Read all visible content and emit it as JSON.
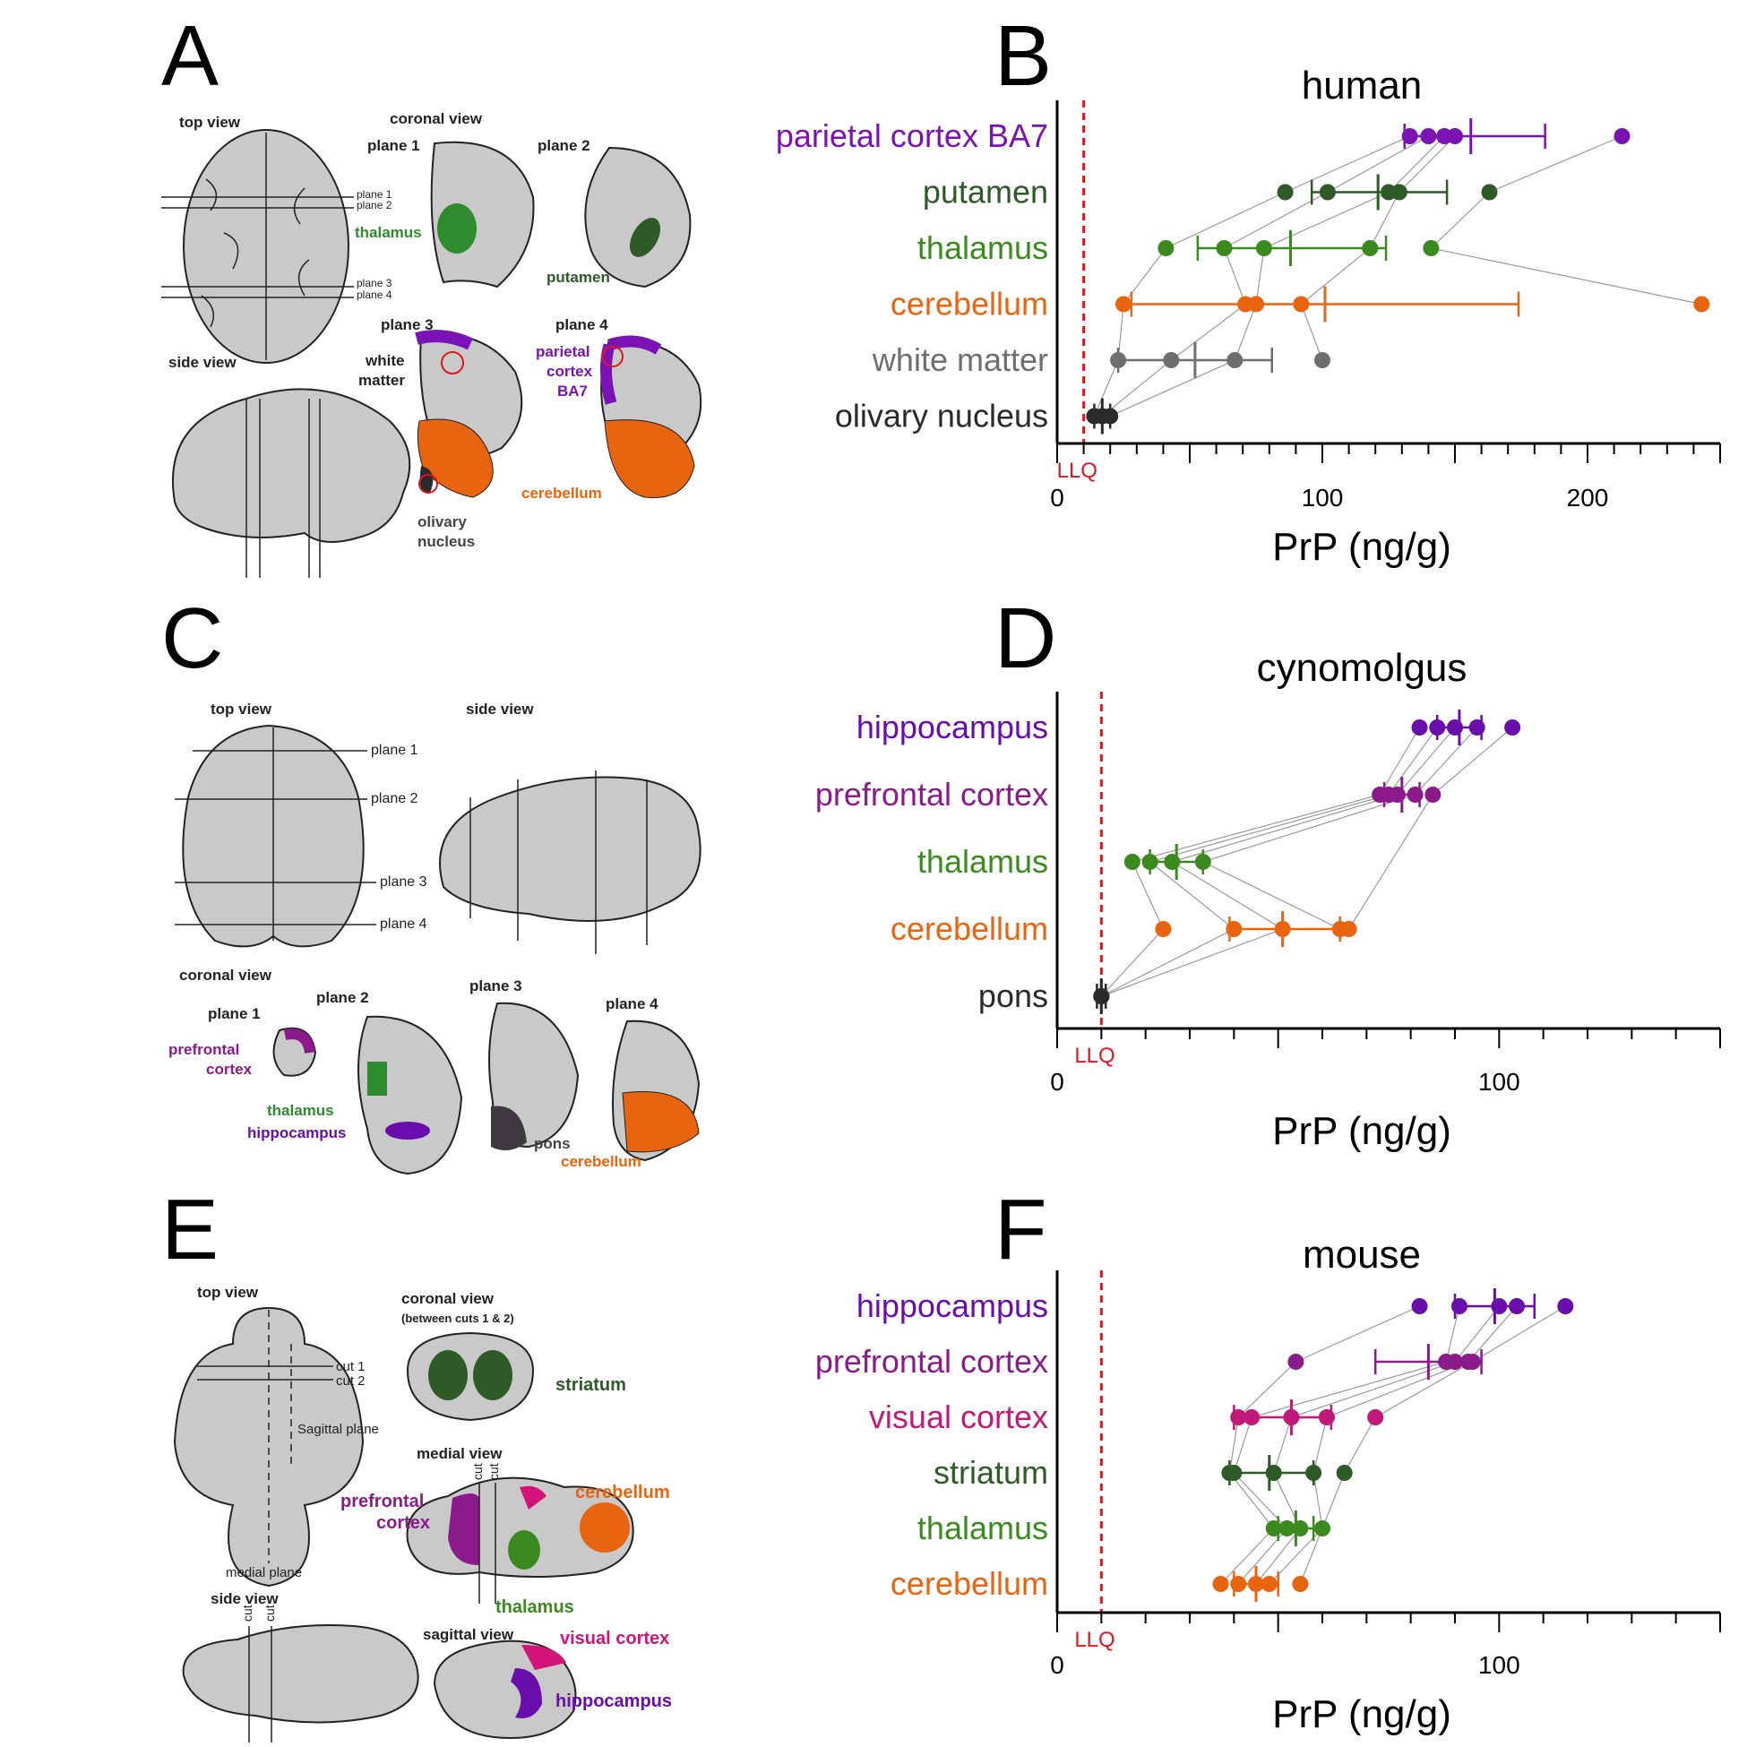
{
  "panels": {
    "A": {
      "letter": "A",
      "top_view": "top view",
      "side_view": "side view",
      "coronal_view": "coronal view",
      "plane_1": "plane 1",
      "plane_2": "plane 2",
      "plane_3": "plane 3",
      "plane_4": "plane 4",
      "thalamus": "thalamus",
      "putamen": "putamen",
      "white": "white",
      "matter": "matter",
      "parietal": "parietal",
      "cortex": "cortex",
      "ba7": "BA7",
      "cerebellum": "cerebellum",
      "olivary": "olivary",
      "nucleus": "nucleus"
    },
    "B": {
      "letter": "B"
    },
    "C": {
      "letter": "C",
      "top_view": "top view",
      "side_view": "side view",
      "coronal_view": "coronal view",
      "plane_1": "plane 1",
      "plane_2": "plane 2",
      "plane_3": "plane 3",
      "plane_4": "plane 4",
      "prefrontal": "prefrontal",
      "cortex": "cortex",
      "thalamus": "thalamus",
      "hippocampus": "hippocampus",
      "pons": "pons",
      "cerebellum": "cerebellum"
    },
    "D": {
      "letter": "D"
    },
    "E": {
      "letter": "E",
      "top_view": "top view",
      "coronal_view": "coronal view",
      "coronal_sub": "(between cuts 1 & 2)",
      "striatum": "striatum",
      "cut_1": "cut 1",
      "cut_2": "cut 2",
      "sagittal_plane": "Sagittal plane",
      "medial_plane": "medial plane",
      "medial_view": "medial view",
      "prefrontal": "prefrontal",
      "cortex": "cortex",
      "cerebellum": "cerebellum",
      "thalamus": "thalamus",
      "side_view": "side view",
      "sagittal_view": "sagittal view",
      "visual_cortex": "visual cortex",
      "hippocampus": "hippocampus",
      "cut": "cut"
    },
    "F": {
      "letter": "F"
    }
  },
  "colors": {
    "purple": "#6a0dad",
    "magenta": "#8b1a8b",
    "pink": "#c2187a",
    "dark_green": "#2d5a27",
    "green": "#3a8a1f",
    "orange": "#e8640e",
    "gray": "#6e6e6e",
    "black": "#2a2a2a",
    "llq_red": "#e0161c"
  },
  "chart_data": [
    {
      "type": "scatter",
      "title": "human",
      "xlabel": "PrP (ng/g)",
      "xlim": [
        0,
        250
      ],
      "xticks": [
        0,
        100,
        200
      ],
      "llq": 10,
      "llq_label": "LLQ",
      "categories": [
        {
          "name": "parietal cortex BA7",
          "color": "#7b12b5",
          "points": [
            133,
            140,
            146,
            150,
            213
          ],
          "mean": 156,
          "sd_low": 131,
          "sd_high": 184
        },
        {
          "name": "putamen",
          "color": "#2d5a27",
          "points": [
            86,
            102,
            125,
            129,
            163
          ],
          "mean": 121,
          "sd_low": 96,
          "sd_high": 147
        },
        {
          "name": "thalamus",
          "color": "#3a8a1f",
          "points": [
            41,
            63,
            78,
            118,
            141
          ],
          "mean": 88,
          "sd_low": 53,
          "sd_high": 124
        },
        {
          "name": "cerebellum",
          "color": "#e8640e",
          "points": [
            25,
            71,
            75,
            92,
            243
          ],
          "mean": 101,
          "sd_low": 28,
          "sd_high": 174
        },
        {
          "name": "white matter",
          "color": "#6e6e6e",
          "points": [
            23,
            43,
            67,
            100
          ],
          "mean": 52,
          "sd_low": 23,
          "sd_high": 81
        },
        {
          "name": "olivary nucleus",
          "color": "#2a2a2a",
          "points": [
            14,
            17,
            20
          ],
          "mean": 17,
          "sd_low": 14,
          "sd_high": 20
        }
      ]
    },
    {
      "type": "scatter",
      "title": "cynomolgus",
      "xlabel": "PrP (ng/g)",
      "xlim": [
        0,
        150
      ],
      "xticks": [
        0,
        100
      ],
      "llq": 10,
      "llq_label": "LLQ",
      "categories": [
        {
          "name": "hippocampus",
          "color": "#6a0dad",
          "points": [
            82,
            86,
            90,
            95,
            103
          ],
          "mean": 91,
          "sd_low": 86,
          "sd_high": 96
        },
        {
          "name": "prefrontal cortex",
          "color": "#8b1a8b",
          "points": [
            73,
            75,
            77,
            81,
            85
          ],
          "mean": 78,
          "sd_low": 74,
          "sd_high": 82
        },
        {
          "name": "thalamus",
          "color": "#3a8a1f",
          "points": [
            17,
            21,
            26,
            33
          ],
          "mean": 27,
          "sd_low": 21,
          "sd_high": 33
        },
        {
          "name": "cerebellum",
          "color": "#e8640e",
          "points": [
            24,
            40,
            51,
            64,
            66
          ],
          "mean": 51,
          "sd_low": 39,
          "sd_high": 64
        },
        {
          "name": "pons",
          "color": "#2a2a2a",
          "points": [
            10,
            10,
            10
          ],
          "mean": 10,
          "sd_low": 9,
          "sd_high": 11
        }
      ]
    },
    {
      "type": "scatter",
      "title": "mouse",
      "xlabel": "PrP (ng/g)",
      "xlim": [
        0,
        150
      ],
      "xticks": [
        0,
        100
      ],
      "llq": 10,
      "llq_label": "LLQ",
      "categories": [
        {
          "name": "hippocampus",
          "color": "#6a0dad",
          "points": [
            82,
            91,
            100,
            104,
            115
          ],
          "mean": 99,
          "sd_low": 90,
          "sd_high": 108
        },
        {
          "name": "prefrontal cortex",
          "color": "#8b1a8b",
          "points": [
            54,
            88,
            90,
            93,
            94
          ],
          "mean": 84,
          "sd_low": 72,
          "sd_high": 96
        },
        {
          "name": "visual cortex",
          "color": "#c2187a",
          "points": [
            41,
            44,
            53,
            61,
            72
          ],
          "mean": 53,
          "sd_low": 40,
          "sd_high": 62
        },
        {
          "name": "striatum",
          "color": "#2d5a27",
          "points": [
            39,
            40,
            49,
            58,
            65
          ],
          "mean": 48,
          "sd_low": 39,
          "sd_high": 58
        },
        {
          "name": "thalamus",
          "color": "#3a8a1f",
          "points": [
            49,
            52,
            55,
            60
          ],
          "mean": 54,
          "sd_low": 50,
          "sd_high": 58
        },
        {
          "name": "cerebellum",
          "color": "#e8640e",
          "points": [
            37,
            41,
            45,
            48,
            55
          ],
          "mean": 45,
          "sd_low": 40,
          "sd_high": 50
        }
      ]
    }
  ]
}
